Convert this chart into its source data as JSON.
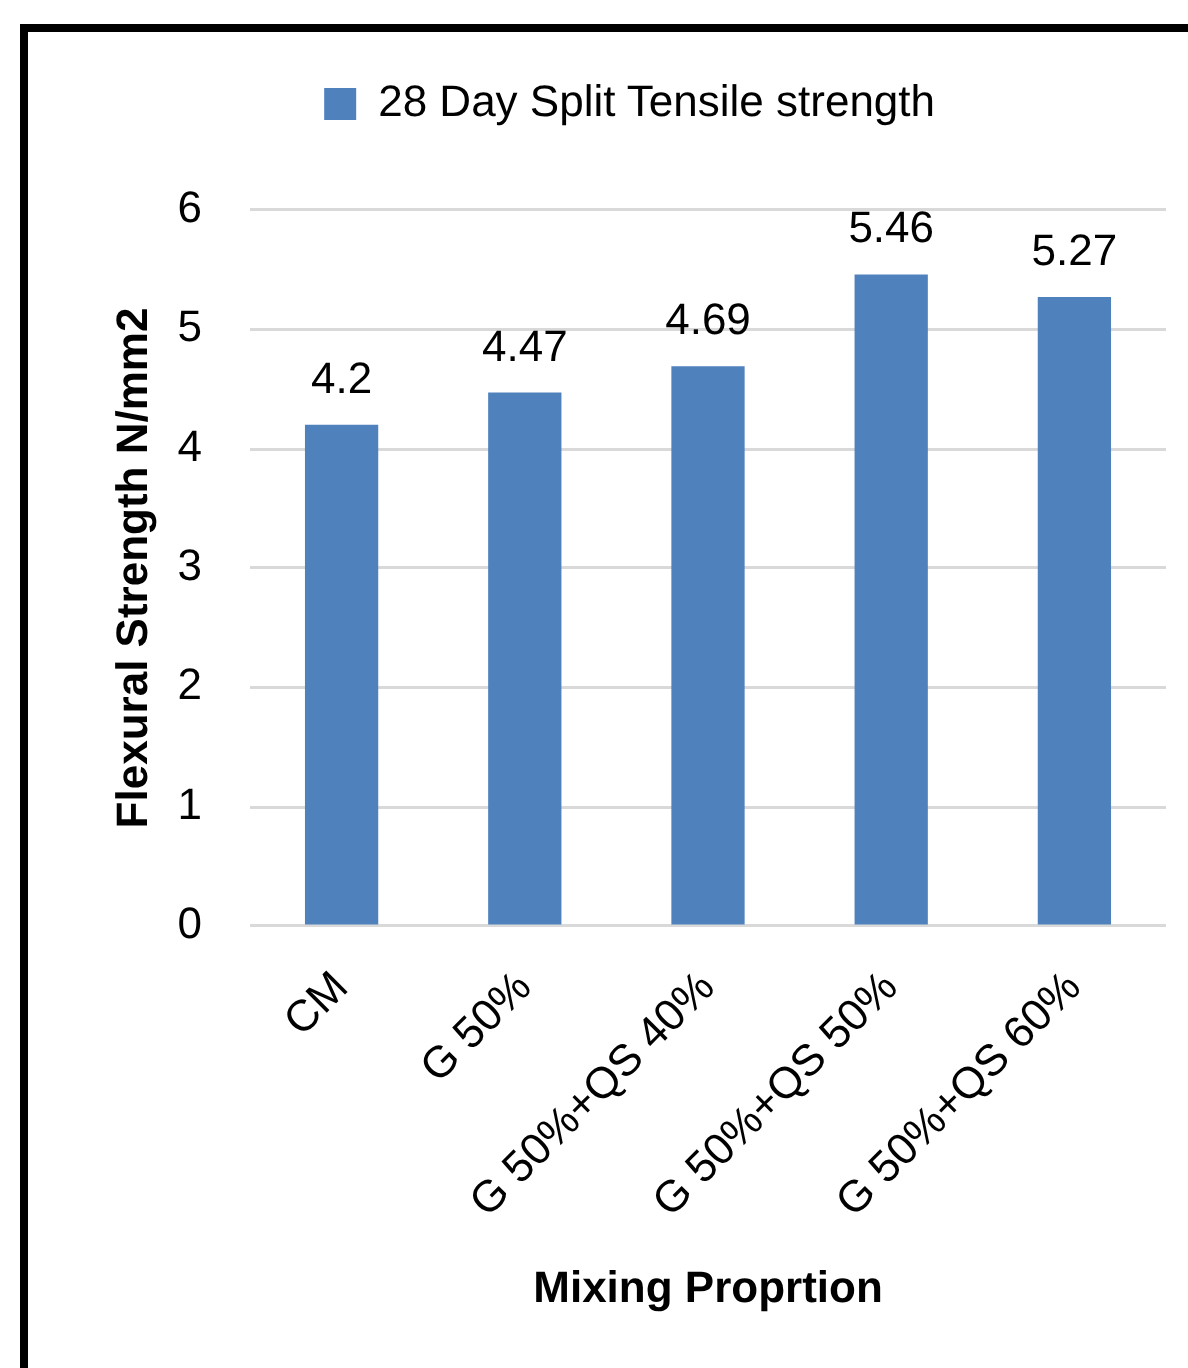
{
  "chart_data": {
    "type": "bar",
    "categories": [
      "CM",
      "G 50%",
      "G 50%+QS 40%",
      "G 50%+QS 50%",
      "G 50%+QS 60%"
    ],
    "series": [
      {
        "name": "28 Day Split Tensile strength",
        "color": "#4f81bd",
        "values": [
          4.2,
          4.47,
          4.69,
          5.46,
          5.27
        ]
      }
    ],
    "xlabel": "Mixing Proprtion",
    "ylabel": "Flexural Strength N/mm2",
    "ylim": [
      0,
      6
    ],
    "yticks": [
      0,
      1,
      2,
      3,
      4,
      5,
      6
    ],
    "grid": "y",
    "legend": "top",
    "data_labels": true
  }
}
